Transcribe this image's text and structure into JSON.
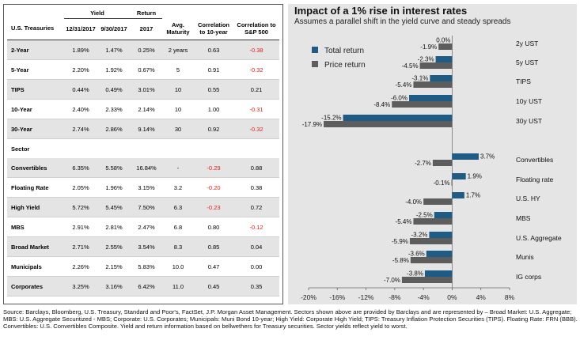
{
  "table": {
    "group_headers": [
      "Yield",
      "Return"
    ],
    "columns": [
      "U.S. Treasuries",
      "12/31/2017",
      "9/30/2017",
      "2017",
      "Avg. Maturity",
      "Correlation to 10-year",
      "Correlation to S&P 500"
    ],
    "treasury_rows": [
      [
        "2-Year",
        "1.89%",
        "1.47%",
        "0.25%",
        "2 years",
        "0.63",
        "-0.38"
      ],
      [
        "5-Year",
        "2.20%",
        "1.92%",
        "0.67%",
        "5",
        "0.91",
        "-0.32"
      ],
      [
        "TIPS",
        "0.44%",
        "0.49%",
        "3.01%",
        "10",
        "0.55",
        "0.21"
      ],
      [
        "10-Year",
        "2.40%",
        "2.33%",
        "2.14%",
        "10",
        "1.00",
        "-0.31"
      ],
      [
        "30-Year",
        "2.74%",
        "2.86%",
        "9.14%",
        "30",
        "0.92",
        "-0.32"
      ]
    ],
    "sector_label": "Sector",
    "sector_rows": [
      [
        "Convertibles",
        "6.35%",
        "5.58%",
        "16.84%",
        "-",
        "-0.29",
        "0.88"
      ],
      [
        "Floating Rate",
        "2.05%",
        "1.96%",
        "3.15%",
        "3.2",
        "-0.20",
        "0.38"
      ],
      [
        "High Yield",
        "5.72%",
        "5.45%",
        "7.50%",
        "6.3",
        "-0.23",
        "0.72"
      ],
      [
        "MBS",
        "2.91%",
        "2.81%",
        "2.47%",
        "6.8",
        "0.80",
        "-0.12"
      ],
      [
        "Broad Market",
        "2.71%",
        "2.55%",
        "3.54%",
        "8.3",
        "0.85",
        "0.04"
      ],
      [
        "Municipals",
        "2.26%",
        "2.15%",
        "5.83%",
        "10.0",
        "0.47",
        "0.00"
      ],
      [
        "Corporates",
        "3.25%",
        "3.16%",
        "6.42%",
        "11.0",
        "0.45",
        "0.35"
      ]
    ]
  },
  "chart_data": {
    "type": "bar",
    "orientation": "horizontal",
    "title": "Impact of a 1% rise in interest rates",
    "subtitle": "Assumes a parallel shift in the yield curve and steady spreads",
    "categories": [
      "2y UST",
      "5y UST",
      "TIPS",
      "10y UST",
      "30y UST",
      "Convertibles",
      "Floating rate",
      "U.S. HY",
      "MBS",
      "U.S. Aggregate",
      "Munis",
      "IG corps"
    ],
    "series": [
      {
        "name": "Total return",
        "color": "#1f5c85",
        "values": [
          0.0,
          -2.3,
          -3.1,
          -6.0,
          -15.2,
          3.7,
          1.9,
          1.7,
          -2.5,
          -3.2,
          -3.6,
          -3.8
        ],
        "labels": [
          "0.0%",
          "-2.3%",
          "-3.1%",
          "-6.0%",
          "-15.2%",
          "3.7%",
          "1.9%",
          "1.7%",
          "-2.5%",
          "-3.2%",
          "-3.6%",
          "-3.8%"
        ]
      },
      {
        "name": "Price return",
        "color": "#5d5d5d",
        "values": [
          -1.9,
          -4.5,
          -5.4,
          -8.4,
          -17.9,
          -2.7,
          -0.1,
          -4.0,
          -5.4,
          -5.9,
          -5.8,
          -7.0
        ],
        "labels": [
          "-1.9%",
          "-4.5%",
          "-5.4%",
          "-8.4%",
          "-17.9%",
          "-2.7%",
          "-0.1%",
          "-4.0%",
          "-5.4%",
          "-5.9%",
          "-5.8%",
          "-7.0%"
        ]
      }
    ],
    "xlim": [
      -20,
      8
    ],
    "xticks": [
      -20,
      -16,
      -12,
      -8,
      -4,
      0,
      4,
      8
    ],
    "xtick_labels": [
      "-20%",
      "-16%",
      "-12%",
      "-8%",
      "-4%",
      "0%",
      "4%",
      "8%"
    ],
    "legend": "top-left",
    "grid": false,
    "negative_color": "#e0201b"
  },
  "footnote": "Source: Barclays, Bloomberg, U.S. Treasury, Standard and Poor's, FactSet, J.P. Morgan Asset Management. Sectors shown above are provided by Barclays and are represented by – Broad Market: U.S. Aggregate; MBS: U.S. Aggregate Securitized - MBS; Corporate: U.S. Corporates; Municipals: Muni Bond 10-year; High Yield: Corporate High Yield; TIPS: Treasury Inflation Protection Securities (TIPS). Floating Rate: FRN (BBB). Convertibles: U.S. Convertibles Composite. Yield and return information based on bellwethers for Treasury securities. Sector yields reflect yield to worst."
}
